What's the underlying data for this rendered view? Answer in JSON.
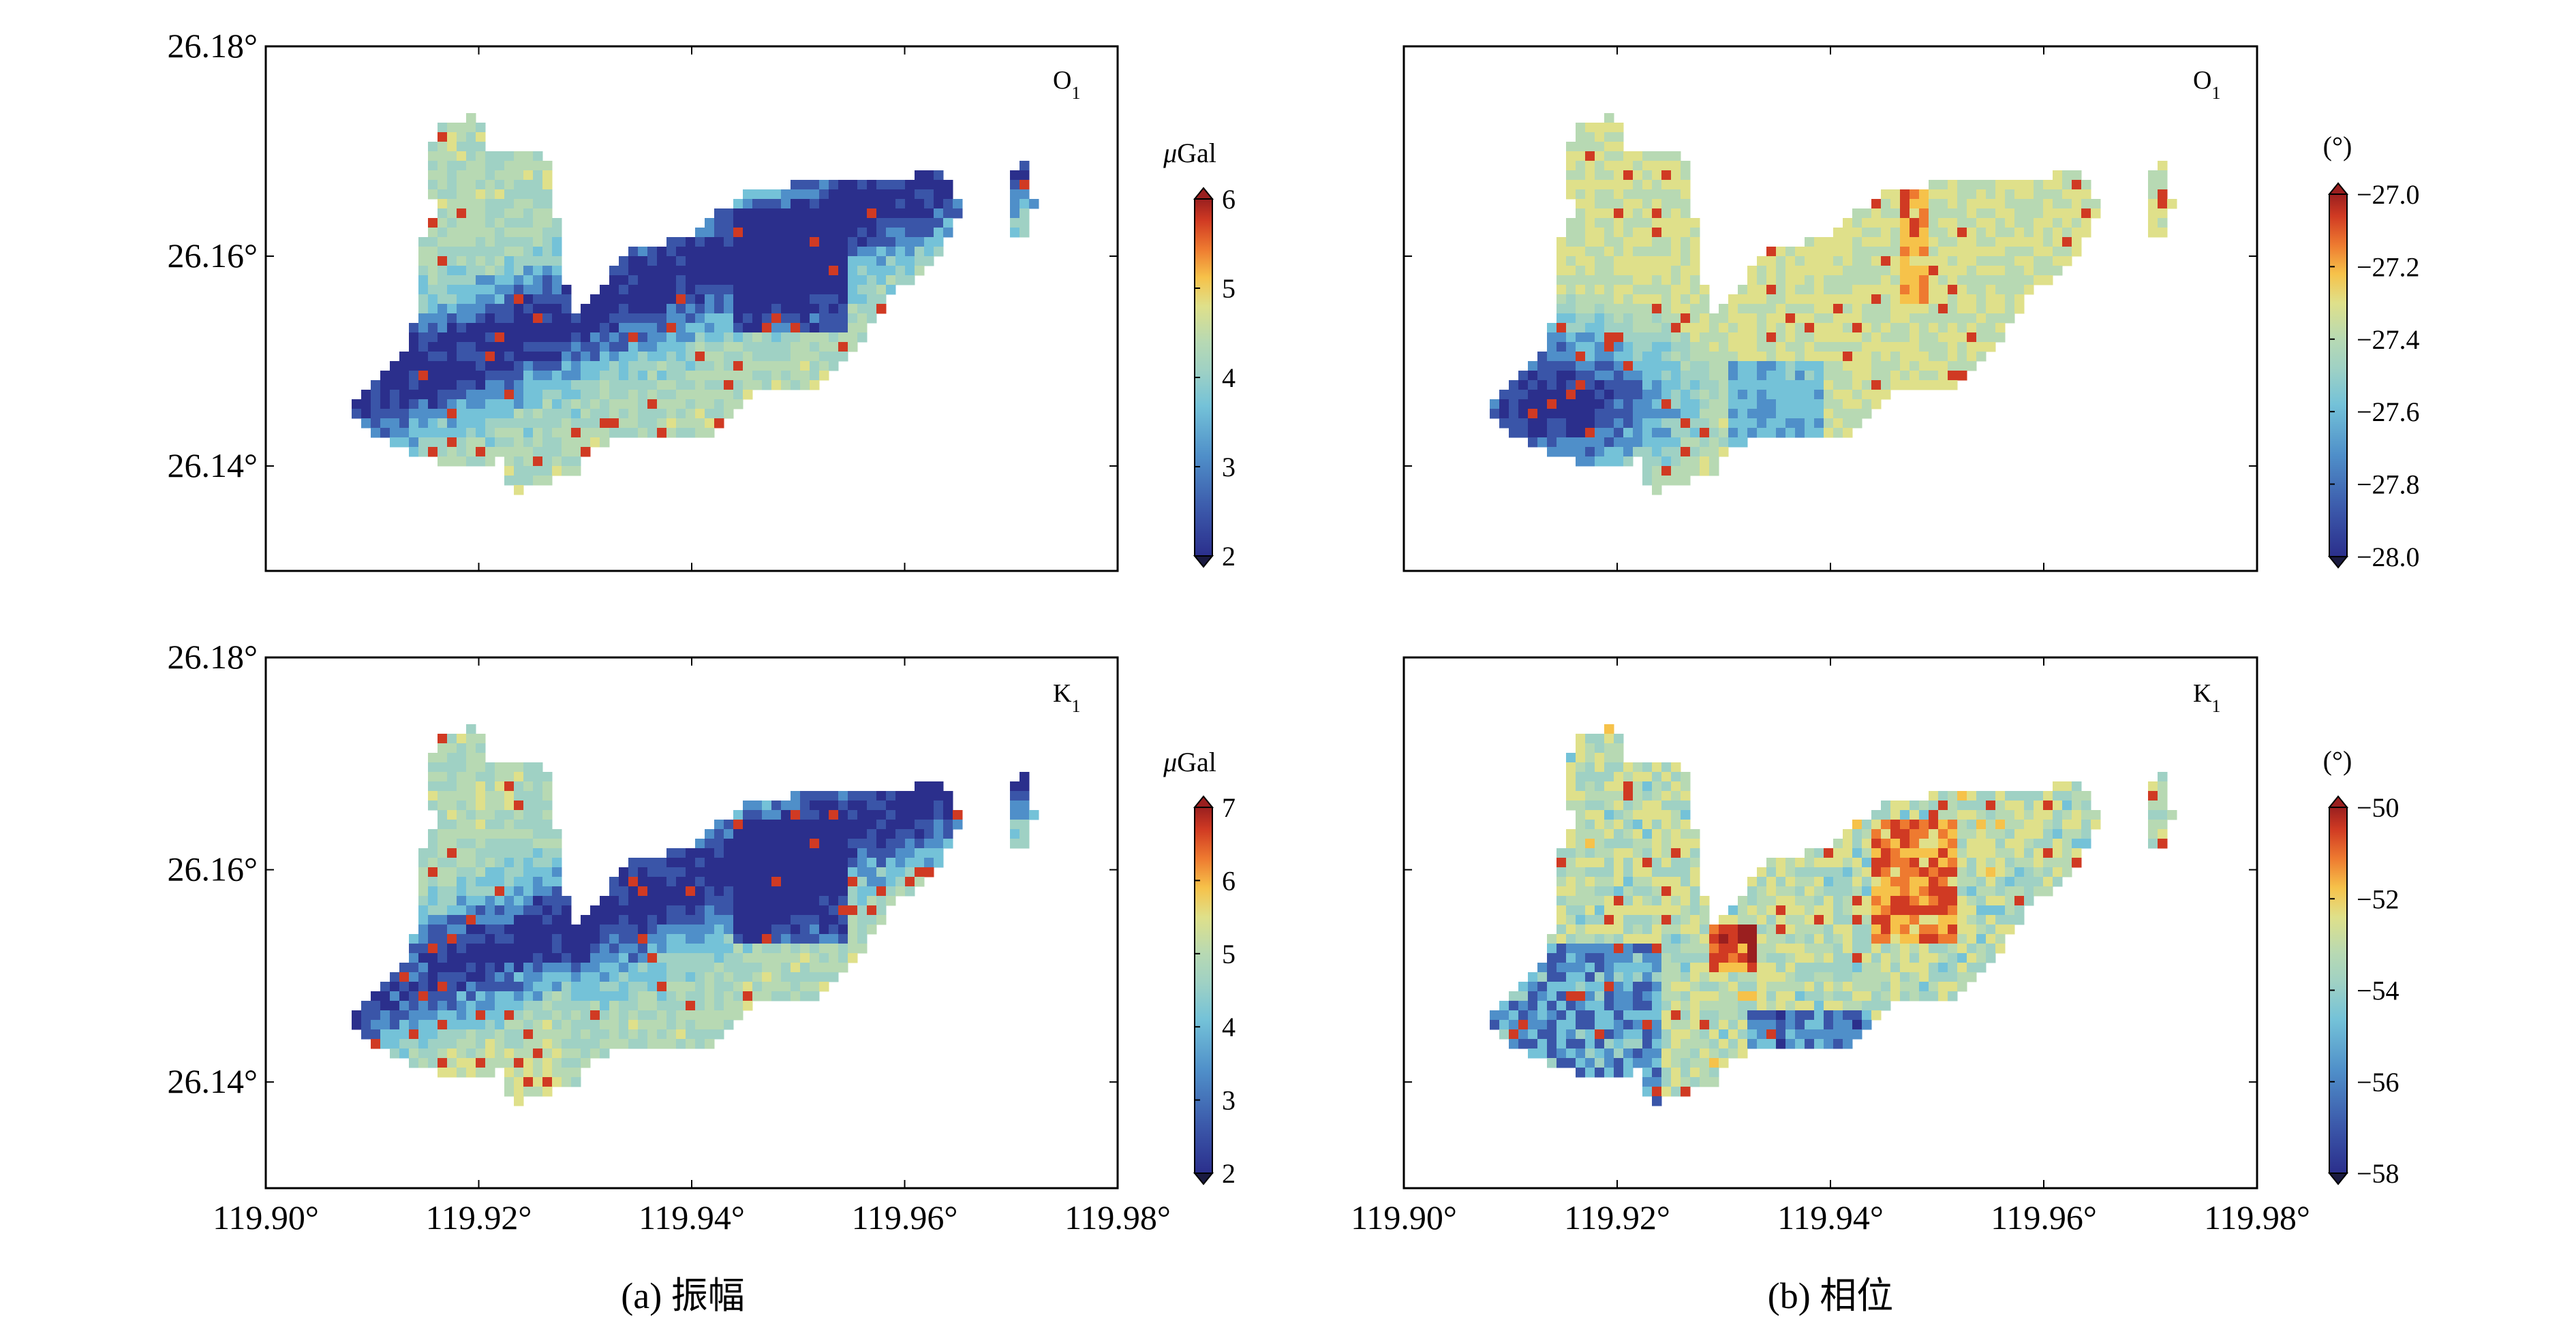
{
  "figure": {
    "panels": [
      {
        "id": "amp-o1",
        "label": "O",
        "label_sub": "1",
        "kind": "amplitude",
        "colorbar": {
          "unit_prefix": "μ",
          "unit_rest": "Gal",
          "ticks": [
            "2",
            "3",
            "4",
            "5",
            "6"
          ],
          "min": 2,
          "max": 6
        }
      },
      {
        "id": "phase-o1",
        "label": "O",
        "label_sub": "1",
        "kind": "phase",
        "colorbar": {
          "unit": "(°)",
          "ticks": [
            "−28.0",
            "−27.8",
            "−27.6",
            "−27.4",
            "−27.2",
            "−27.0"
          ],
          "min": -28,
          "max": -27
        }
      },
      {
        "id": "amp-k1",
        "label": "K",
        "label_sub": "1",
        "kind": "amplitude",
        "colorbar": {
          "unit_prefix": "μ",
          "unit_rest": "Gal",
          "ticks": [
            "2",
            "3",
            "4",
            "5",
            "6",
            "7"
          ],
          "min": 2,
          "max": 7
        }
      },
      {
        "id": "phase-k1",
        "label": "K",
        "label_sub": "1",
        "kind": "phase",
        "colorbar": {
          "unit": "(°)",
          "ticks": [
            "−58",
            "−56",
            "−54",
            "−52",
            "−50"
          ],
          "min": -58,
          "max": -50
        }
      }
    ],
    "axes": {
      "y_ticks": [
        "26.14°",
        "26.16°",
        "26.18°"
      ],
      "x_ticks": [
        "119.90°",
        "119.92°",
        "119.94°",
        "119.96°",
        "119.98°"
      ],
      "lon_range": [
        119.9,
        119.98
      ],
      "lat_range": [
        26.13,
        26.18
      ]
    },
    "captions": {
      "a": "(a) 振幅",
      "b": "(b) 相位"
    },
    "colors": {
      "colormap": [
        "#2b2f8c",
        "#3a55a8",
        "#4f8fc9",
        "#74c2d8",
        "#9fd1c4",
        "#b7d9b3",
        "#dfe08a",
        "#f6c24a",
        "#ee7a30",
        "#d03a23",
        "#9a1f1f"
      ],
      "frame": "#000000",
      "background": "#ffffff"
    }
  }
}
